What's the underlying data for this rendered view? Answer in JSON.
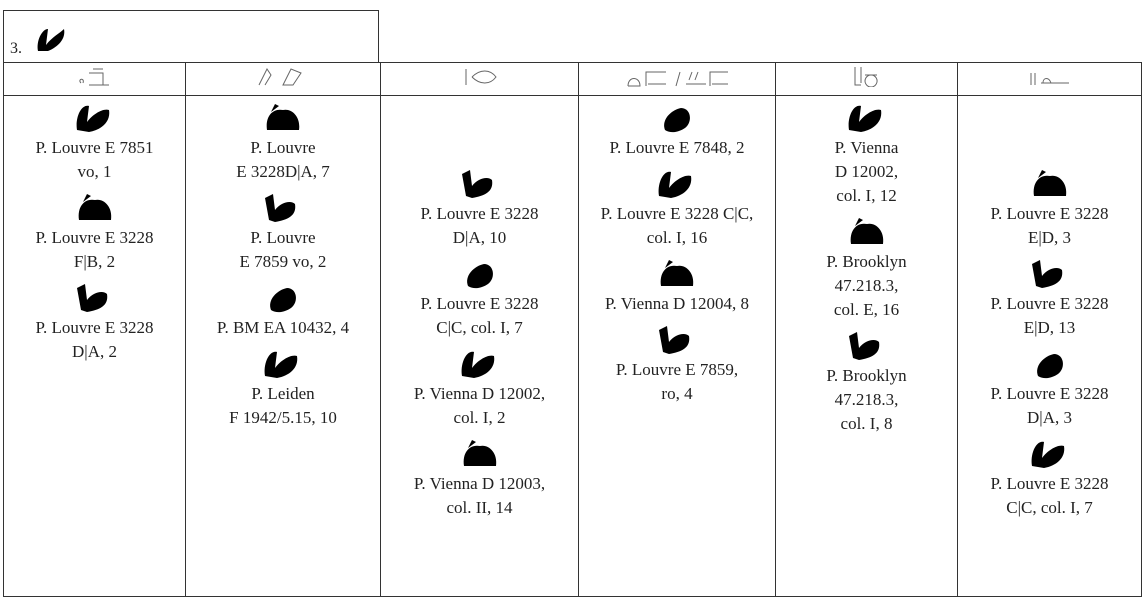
{
  "header": {
    "number": "3."
  },
  "columns": [
    {
      "entries": [
        [
          "P. Louvre E 7851",
          "vo, 1"
        ],
        [
          "P. Louvre E 3228",
          "F|B, 2"
        ],
        [
          "P. Louvre E 3228",
          "D|A, 2"
        ]
      ]
    },
    {
      "entries": [
        [
          "P. Louvre",
          "E 3228D|A, 7"
        ],
        [
          "P. Louvre",
          "E 7859 vo, 2"
        ],
        [
          "P. BM EA 10432, 4"
        ],
        [
          "P. Leiden",
          "F 1942/5.15, 10"
        ]
      ]
    },
    {
      "entries": [
        [
          "P. Louvre E 3228",
          "D|A, 10"
        ],
        [
          "P. Louvre E 3228",
          "C|C, col. I, 7"
        ],
        [
          "P. Vienna D 12002,",
          "col. I, 2"
        ],
        [
          "P. Vienna D 12003,",
          "col. II, 14"
        ]
      ]
    },
    {
      "entries": [
        [
          "P. Louvre E 7848, 2"
        ],
        [
          "P. Louvre E 3228 C|C,",
          "col. I, 16"
        ],
        [
          "P. Vienna D 12004, 8"
        ],
        [
          "P. Louvre E 7859,",
          "ro, 4"
        ]
      ]
    },
    {
      "entries": [
        [
          "P. Vienna",
          "D 12002,",
          "col. I, 12"
        ],
        [
          "P. Brooklyn",
          "47.218.3,",
          "col. E, 16"
        ],
        [
          "P. Brooklyn",
          "47.218.3,",
          "col. I, 8"
        ]
      ]
    },
    {
      "entries": [
        [
          "P. Louvre E 3228",
          "E|D, 3"
        ],
        [
          "P. Louvre E 3228",
          "E|D, 13"
        ],
        [
          "P. Louvre E 3228",
          "D|A, 3"
        ],
        [
          "P. Louvre E 3228",
          "C|C, col. I, 7"
        ]
      ]
    }
  ]
}
